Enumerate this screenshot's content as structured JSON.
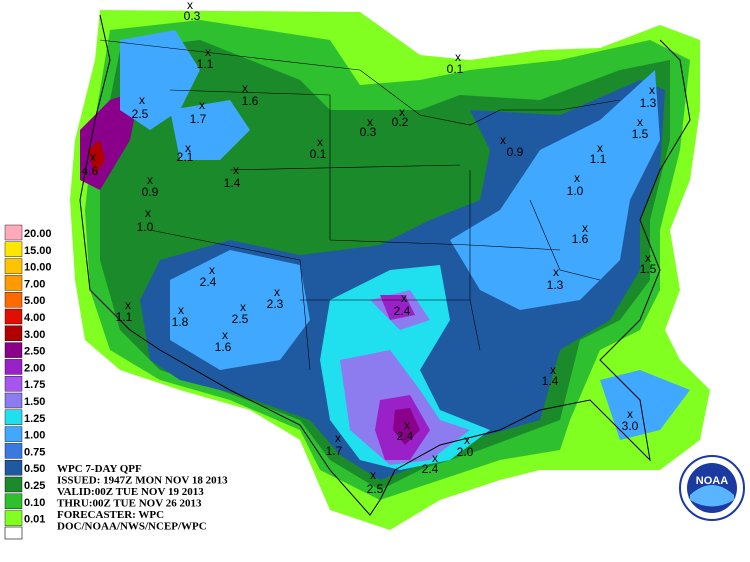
{
  "legend": [
    {
      "label": "20.00",
      "color": "#ffaabb"
    },
    {
      "label": "15.00",
      "color": "#ffe600"
    },
    {
      "label": "10.00",
      "color": "#ffc400"
    },
    {
      "label": "7.00",
      "color": "#ff9a00"
    },
    {
      "label": "5.00",
      "color": "#ff6a00"
    },
    {
      "label": "4.00",
      "color": "#e01000"
    },
    {
      "label": "3.00",
      "color": "#b00000"
    },
    {
      "label": "2.50",
      "color": "#8a008a"
    },
    {
      "label": "2.00",
      "color": "#9a20c8"
    },
    {
      "label": "1.75",
      "color": "#a855f0"
    },
    {
      "label": "1.50",
      "color": "#8c7cf0"
    },
    {
      "label": "1.25",
      "color": "#20e0f0"
    },
    {
      "label": "1.00",
      "color": "#40a8ff"
    },
    {
      "label": "0.75",
      "color": "#3a7ae0"
    },
    {
      "label": "0.50",
      "color": "#1f5aa0"
    },
    {
      "label": "0.25",
      "color": "#1a8a2a"
    },
    {
      "label": "0.10",
      "color": "#2ec02e"
    },
    {
      "label": "0.01",
      "color": "#80ff20"
    }
  ],
  "info": [
    "WPC 7-DAY QPF",
    "ISSUED: 1947Z MON NOV 18 2013",
    "VALID:00Z TUE NOV 19 2013",
    "THRU:00Z TUE NOV 26 2013",
    "FORECASTER: WPC",
    "DOC/NOAA/NWS/NCEP/WPC"
  ],
  "points": [
    "0.3",
    "1.1",
    "1.6",
    "2.5",
    "1.7",
    "2.1",
    "1.4",
    "0.9",
    "1.0",
    "4.6",
    "0.1",
    "0.3",
    "0.2",
    "0.1",
    "0.9",
    "1.3",
    "1.5",
    "1.1",
    "1.0",
    "1.6",
    "1.5",
    "1.3",
    "2.4",
    "2.3",
    "2.4",
    "1.8",
    "2.5",
    "1.6",
    "1.1",
    "1.4",
    "2.4",
    "1.7",
    "2.4",
    "2.0",
    "2.5",
    "3.0"
  ],
  "logo_text": "NOAA"
}
